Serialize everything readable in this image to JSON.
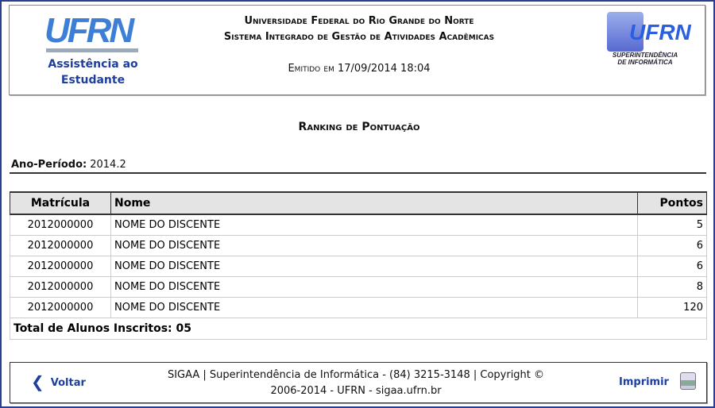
{
  "header": {
    "logo_text": "UFRN",
    "unit": "Assistência ao Estudante",
    "institution": "Universidade Federal do Rio Grande do Norte",
    "system": "Sistema Integrado de Gestão de Atividades Acadêmicas",
    "emitted": "Emitido em 17/09/2014 18:04",
    "si_logo_text": "UFRN",
    "si_caption": "SUPERINTENDÊNCIA DE INFORMÁTICA"
  },
  "report": {
    "title": "Ranking de Pontuação",
    "period_label": "Ano-Período:",
    "period_value": "2014.2",
    "columns": [
      "Matrícula",
      "Nome",
      "Pontos"
    ],
    "rows": [
      [
        "2012000000",
        "NOME DO DISCENTE",
        "5"
      ],
      [
        "2012000000",
        "NOME DO DISCENTE",
        "6"
      ],
      [
        "2012000000",
        "NOME DO DISCENTE",
        "6"
      ],
      [
        "2012000000",
        "NOME DO DISCENTE",
        "8"
      ],
      [
        "2012000000",
        "NOME DO DISCENTE",
        "120"
      ]
    ],
    "total": "Total de Alunos Inscritos: 05"
  },
  "footer": {
    "back_label": "Voltar",
    "line1": "SIGAA | Superintendência de Informática - (84) 3215-3148 | Copyright ©",
    "line2": "2006-2014 - UFRN - sigaa.ufrn.br",
    "print_label": "Imprimir"
  },
  "colors": {
    "frame": "#2a3f8f",
    "link": "#1f3f9f",
    "header_bg": "#e4e4e4"
  }
}
